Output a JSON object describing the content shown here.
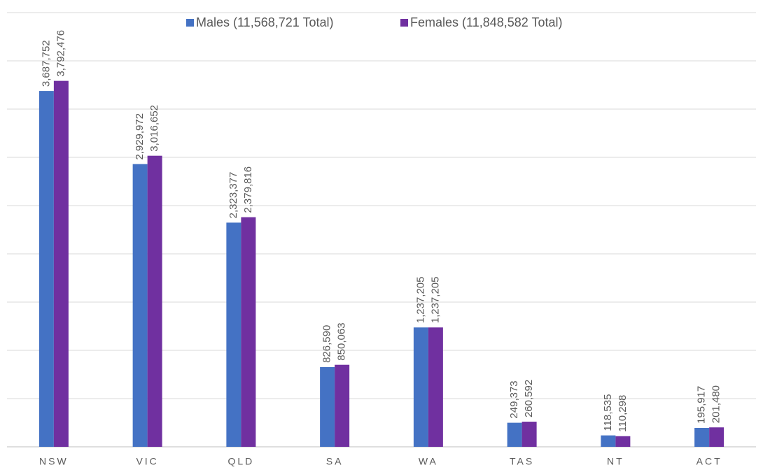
{
  "chart_data": {
    "type": "bar",
    "categories": [
      "NSW",
      "VIC",
      "QLD",
      "SA",
      "WA",
      "TAS",
      "NT",
      "ACT"
    ],
    "series": [
      {
        "name": "Males (11,568,721 Total)",
        "color": "#4472c4",
        "values": [
          3687752,
          2929972,
          2323377,
          826590,
          1237205,
          249373,
          118535,
          195917
        ],
        "value_labels": [
          "3,687,752",
          "2,929,972",
          "2,323,377",
          "826,590",
          "1,237,205",
          "249,373",
          "118,535",
          "195,917"
        ]
      },
      {
        "name": "Females (11,848,582 Total)",
        "color": "#7030a0",
        "values": [
          3792476,
          3016652,
          2379816,
          850063,
          1237205,
          260592,
          110298,
          201480
        ],
        "value_labels": [
          "3,792,476",
          "3,016,652",
          "2,379,816",
          "850,063",
          "1,237,205",
          "260,592",
          "110,298",
          "201,480"
        ]
      }
    ],
    "ylim": [
      0,
      4500000
    ],
    "yticks": [
      0,
      500000,
      1000000,
      1500000,
      2000000,
      2500000,
      3000000,
      3500000,
      4000000,
      4500000
    ],
    "grid": true,
    "legend": "top"
  }
}
